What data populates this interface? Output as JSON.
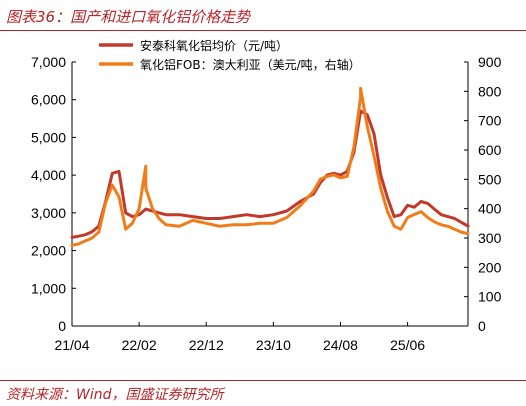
{
  "figure": {
    "title": "图表36：国产和进口氧化铝价格走势",
    "source": "资料来源：Wind，国盛证券研究所"
  },
  "colors": {
    "accent": "#b5252a",
    "series1": "#c0392b",
    "series2": "#f07d1a"
  },
  "chart_data": {
    "type": "line",
    "title": "",
    "xlabel": "",
    "ylabel": "",
    "x_ticks": [
      "21/04",
      "22/02",
      "22/12",
      "23/10",
      "24/08",
      "25/06"
    ],
    "x_range": [
      "2021-04",
      "2026-03"
    ],
    "y_left": {
      "range": [
        0,
        7000
      ],
      "ticks": [
        "0",
        "1,000",
        "2,000",
        "3,000",
        "4,000",
        "5,000",
        "6,000",
        "7,000"
      ]
    },
    "y_right": {
      "range": [
        0,
        900
      ],
      "ticks": [
        "0",
        "100",
        "200",
        "300",
        "400",
        "500",
        "600",
        "700",
        "800",
        "900"
      ]
    },
    "grid": false,
    "legend_position": "top",
    "series": [
      {
        "name": "安泰科氧化铝均价（元/吨）",
        "axis": "left",
        "color": "#c0392b",
        "x": [
          "2021-04",
          "2021-05",
          "2021-06",
          "2021-07",
          "2021-08",
          "2021-09",
          "2021-10",
          "2021-11",
          "2021-12",
          "2022-01",
          "2022-02",
          "2022-03",
          "2022-04",
          "2022-05",
          "2022-06",
          "2022-08",
          "2022-10",
          "2022-12",
          "2023-02",
          "2023-04",
          "2023-06",
          "2023-08",
          "2023-10",
          "2023-12",
          "2024-02",
          "2024-04",
          "2024-05",
          "2024-06",
          "2024-07",
          "2024-08",
          "2024-09",
          "2024-10",
          "2024-11",
          "2024-12",
          "2025-01",
          "2025-02",
          "2025-03",
          "2025-04",
          "2025-05",
          "2025-06",
          "2025-07",
          "2025-08",
          "2025-09",
          "2025-10",
          "2025-11",
          "2025-12",
          "2026-01",
          "2026-02",
          "2026-03"
        ],
        "y": [
          2350,
          2380,
          2420,
          2500,
          2650,
          3300,
          4050,
          4100,
          3000,
          2900,
          2950,
          3100,
          3050,
          3000,
          2950,
          2950,
          2900,
          2850,
          2850,
          2900,
          2950,
          2900,
          2950,
          3050,
          3300,
          3500,
          3800,
          4000,
          4050,
          4000,
          4100,
          4600,
          5700,
          5600,
          5100,
          4000,
          3400,
          2900,
          2950,
          3200,
          3150,
          3300,
          3250,
          3100,
          2950,
          2900,
          2850,
          2750,
          2650
        ]
      },
      {
        "name": "氧化铝FOB：澳大利亚（美元/吨，右轴）",
        "axis": "right",
        "color": "#f07d1a",
        "x": [
          "2021-04",
          "2021-05",
          "2021-06",
          "2021-07",
          "2021-08",
          "2021-09",
          "2021-10",
          "2021-11",
          "2021-12",
          "2022-01",
          "2022-02",
          "2022-03",
          "2022-03",
          "2022-04",
          "2022-05",
          "2022-06",
          "2022-08",
          "2022-10",
          "2022-12",
          "2023-02",
          "2023-04",
          "2023-06",
          "2023-08",
          "2023-10",
          "2023-12",
          "2024-02",
          "2024-04",
          "2024-05",
          "2024-06",
          "2024-07",
          "2024-08",
          "2024-09",
          "2024-10",
          "2024-11",
          "2024-11",
          "2024-12",
          "2025-01",
          "2025-02",
          "2025-03",
          "2025-04",
          "2025-05",
          "2025-06",
          "2025-07",
          "2025-08",
          "2025-09",
          "2025-10",
          "2025-11",
          "2025-12",
          "2026-01",
          "2026-02",
          "2026-03"
        ],
        "y": [
          275,
          280,
          290,
          300,
          320,
          420,
          480,
          440,
          330,
          350,
          400,
          545,
          470,
          400,
          365,
          345,
          340,
          360,
          350,
          340,
          345,
          345,
          350,
          350,
          370,
          410,
          460,
          500,
          510,
          515,
          505,
          510,
          610,
          780,
          810,
          680,
          580,
          470,
          390,
          340,
          330,
          370,
          380,
          390,
          370,
          355,
          345,
          340,
          330,
          320,
          315
        ]
      }
    ]
  }
}
